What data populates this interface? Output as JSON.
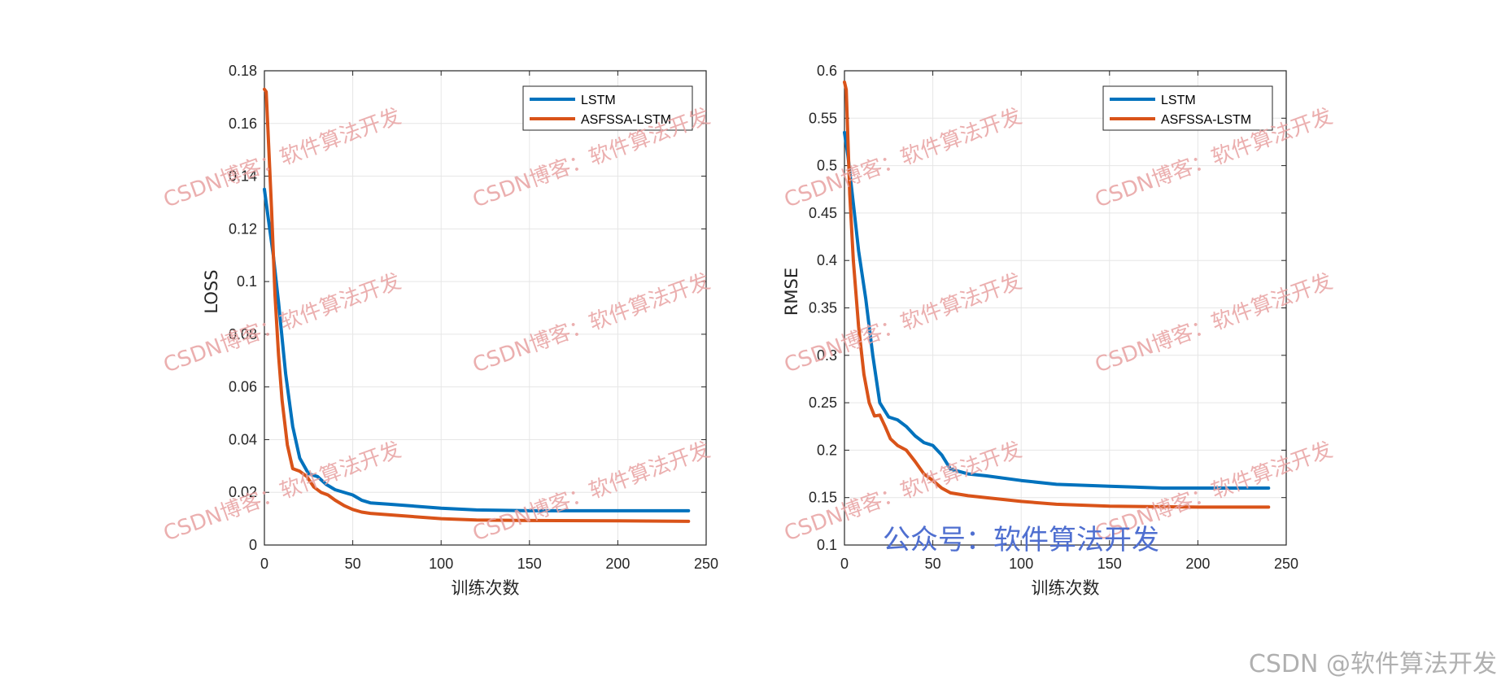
{
  "chart_data": [
    {
      "type": "line",
      "xlabel": "训练次数",
      "ylabel": "LOSS",
      "xlim": [
        0,
        250
      ],
      "ylim": [
        0,
        0.18
      ],
      "xticks": [
        "0",
        "50",
        "100",
        "150",
        "200",
        "250"
      ],
      "yticks": [
        "0",
        "0.02",
        "0.04",
        "0.06",
        "0.08",
        "0.1",
        "0.12",
        "0.14",
        "0.16",
        "0.18"
      ],
      "grid": true,
      "legend_position": "top-right",
      "series": [
        {
          "name": "LSTM",
          "color": "#0072BD",
          "x": [
            0,
            2,
            5,
            8,
            12,
            16,
            20,
            25,
            30,
            35,
            40,
            50,
            55,
            60,
            70,
            80,
            100,
            120,
            150,
            200,
            240
          ],
          "y": [
            0.135,
            0.125,
            0.11,
            0.092,
            0.065,
            0.045,
            0.033,
            0.027,
            0.026,
            0.023,
            0.021,
            0.019,
            0.017,
            0.016,
            0.0155,
            0.015,
            0.014,
            0.0133,
            0.013,
            0.013,
            0.013
          ]
        },
        {
          "name": "ASFSSA-LSTM",
          "color": "#D95319",
          "x": [
            0,
            1,
            2,
            4,
            6,
            8,
            10,
            13,
            16,
            20,
            24,
            28,
            32,
            36,
            40,
            45,
            50,
            55,
            60,
            70,
            80,
            100,
            120,
            150,
            200,
            240
          ],
          "y": [
            0.173,
            0.172,
            0.158,
            0.128,
            0.095,
            0.072,
            0.055,
            0.038,
            0.029,
            0.028,
            0.026,
            0.022,
            0.02,
            0.019,
            0.017,
            0.015,
            0.0135,
            0.0125,
            0.012,
            0.0115,
            0.011,
            0.01,
            0.0095,
            0.0093,
            0.0092,
            0.009
          ]
        }
      ]
    },
    {
      "type": "line",
      "xlabel": "训练次数",
      "ylabel": "RMSE",
      "xlim": [
        0,
        250
      ],
      "ylim": [
        0.1,
        0.6
      ],
      "xticks": [
        "0",
        "50",
        "100",
        "150",
        "200",
        "250"
      ],
      "yticks": [
        "0.1",
        "0.15",
        "0.2",
        "0.25",
        "0.3",
        "0.35",
        "0.4",
        "0.45",
        "0.5",
        "0.55",
        "0.6"
      ],
      "grid": true,
      "legend_position": "top-right",
      "series": [
        {
          "name": "LSTM",
          "color": "#0072BD",
          "x": [
            0,
            2,
            5,
            8,
            12,
            16,
            20,
            25,
            30,
            35,
            40,
            45,
            50,
            55,
            60,
            70,
            80,
            100,
            120,
            150,
            180,
            240
          ],
          "y": [
            0.535,
            0.51,
            0.46,
            0.41,
            0.36,
            0.3,
            0.25,
            0.235,
            0.232,
            0.225,
            0.215,
            0.208,
            0.205,
            0.195,
            0.18,
            0.175,
            0.173,
            0.168,
            0.164,
            0.162,
            0.16,
            0.16
          ]
        },
        {
          "name": "ASFSSA-LSTM",
          "color": "#D95319",
          "x": [
            0,
            1,
            3,
            5,
            8,
            11,
            14,
            17,
            20,
            23,
            26,
            30,
            35,
            40,
            45,
            50,
            55,
            60,
            70,
            80,
            100,
            120,
            150,
            200,
            240
          ],
          "y": [
            0.588,
            0.58,
            0.47,
            0.4,
            0.33,
            0.28,
            0.25,
            0.236,
            0.237,
            0.225,
            0.212,
            0.205,
            0.2,
            0.188,
            0.175,
            0.168,
            0.16,
            0.155,
            0.152,
            0.15,
            0.146,
            0.143,
            0.141,
            0.14,
            0.14
          ]
        }
      ]
    }
  ],
  "watermarks": {
    "repeat_text": "CSDN博客：软件算法开发",
    "center_text": "公众号：软件算法开发",
    "corner_text": "CSDN @软件算法开发",
    "repeat_color": "#e8a2a2",
    "center_color": "#4f6fd0",
    "corner_color": "#b0b0b0"
  }
}
